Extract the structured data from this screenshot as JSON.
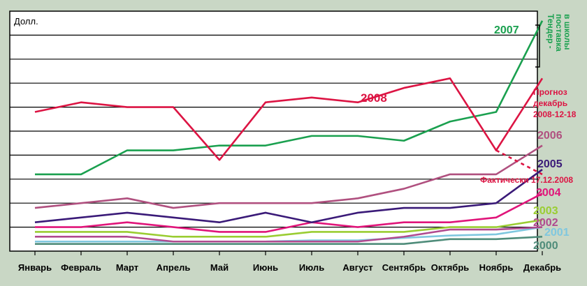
{
  "chart_data": {
    "type": "line",
    "ylabel": "Долл.",
    "categories": [
      "Январь",
      "Февраль",
      "Март",
      "Апрель",
      "Май",
      "Июнь",
      "Июль",
      "Август",
      "Сентябрь",
      "Октябрь",
      "Ноябрь",
      "Декабрь"
    ],
    "ylim": [
      0,
      10
    ],
    "grid": true,
    "series": [
      {
        "name": "2000",
        "color": "#4f8c7a",
        "values": [
          0.3,
          0.3,
          0.3,
          0.3,
          0.3,
          0.3,
          0.3,
          0.3,
          0.3,
          0.5,
          0.5,
          0.6
        ]
      },
      {
        "name": "2001",
        "color": "#7fc7df",
        "values": [
          0.4,
          0.4,
          0.4,
          0.4,
          0.4,
          0.4,
          0.45,
          0.45,
          0.55,
          0.65,
          0.7,
          1.0
        ]
      },
      {
        "name": "2002",
        "color": "#b04a8f",
        "values": [
          0.6,
          0.6,
          0.6,
          0.4,
          0.4,
          0.4,
          0.4,
          0.4,
          0.6,
          0.9,
          0.9,
          1.0
        ]
      },
      {
        "name": "2003",
        "color": "#9acd32",
        "values": [
          0.8,
          0.8,
          0.8,
          0.6,
          0.6,
          0.6,
          0.8,
          0.8,
          0.8,
          1.0,
          1.0,
          1.3
        ]
      },
      {
        "name": "2004",
        "color": "#e0157a",
        "values": [
          1.0,
          1.0,
          1.2,
          1.0,
          0.8,
          0.8,
          1.2,
          1.0,
          1.2,
          1.2,
          1.4,
          2.4
        ]
      },
      {
        "name": "2005",
        "color": "#3a1a78",
        "values": [
          1.2,
          1.4,
          1.6,
          1.4,
          1.2,
          1.6,
          1.2,
          1.6,
          1.8,
          1.8,
          2.0,
          3.4
        ]
      },
      {
        "name": "2006",
        "color": "#b0507f",
        "values": [
          1.8,
          2.0,
          2.2,
          1.8,
          2.0,
          2.0,
          2.0,
          2.2,
          2.6,
          3.2,
          3.2,
          4.4
        ]
      },
      {
        "name": "2007",
        "color": "#1aa04f",
        "values": [
          3.2,
          3.2,
          4.2,
          4.2,
          4.4,
          4.4,
          4.8,
          4.8,
          4.6,
          5.4,
          5.8,
          9.6
        ]
      },
      {
        "name": "2008",
        "color": "#dc1443",
        "values": [
          5.8,
          6.2,
          6.0,
          6.0,
          3.8,
          6.2,
          6.4,
          6.2,
          6.8,
          7.2,
          4.2,
          7.2
        ]
      }
    ],
    "forecast_note": "Прогноз декабрь 2008-12-18",
    "actual_note": "Фактически 17.12.2008",
    "actual_value": 3.2,
    "tender_note": "Тендер - поставка в школы"
  }
}
